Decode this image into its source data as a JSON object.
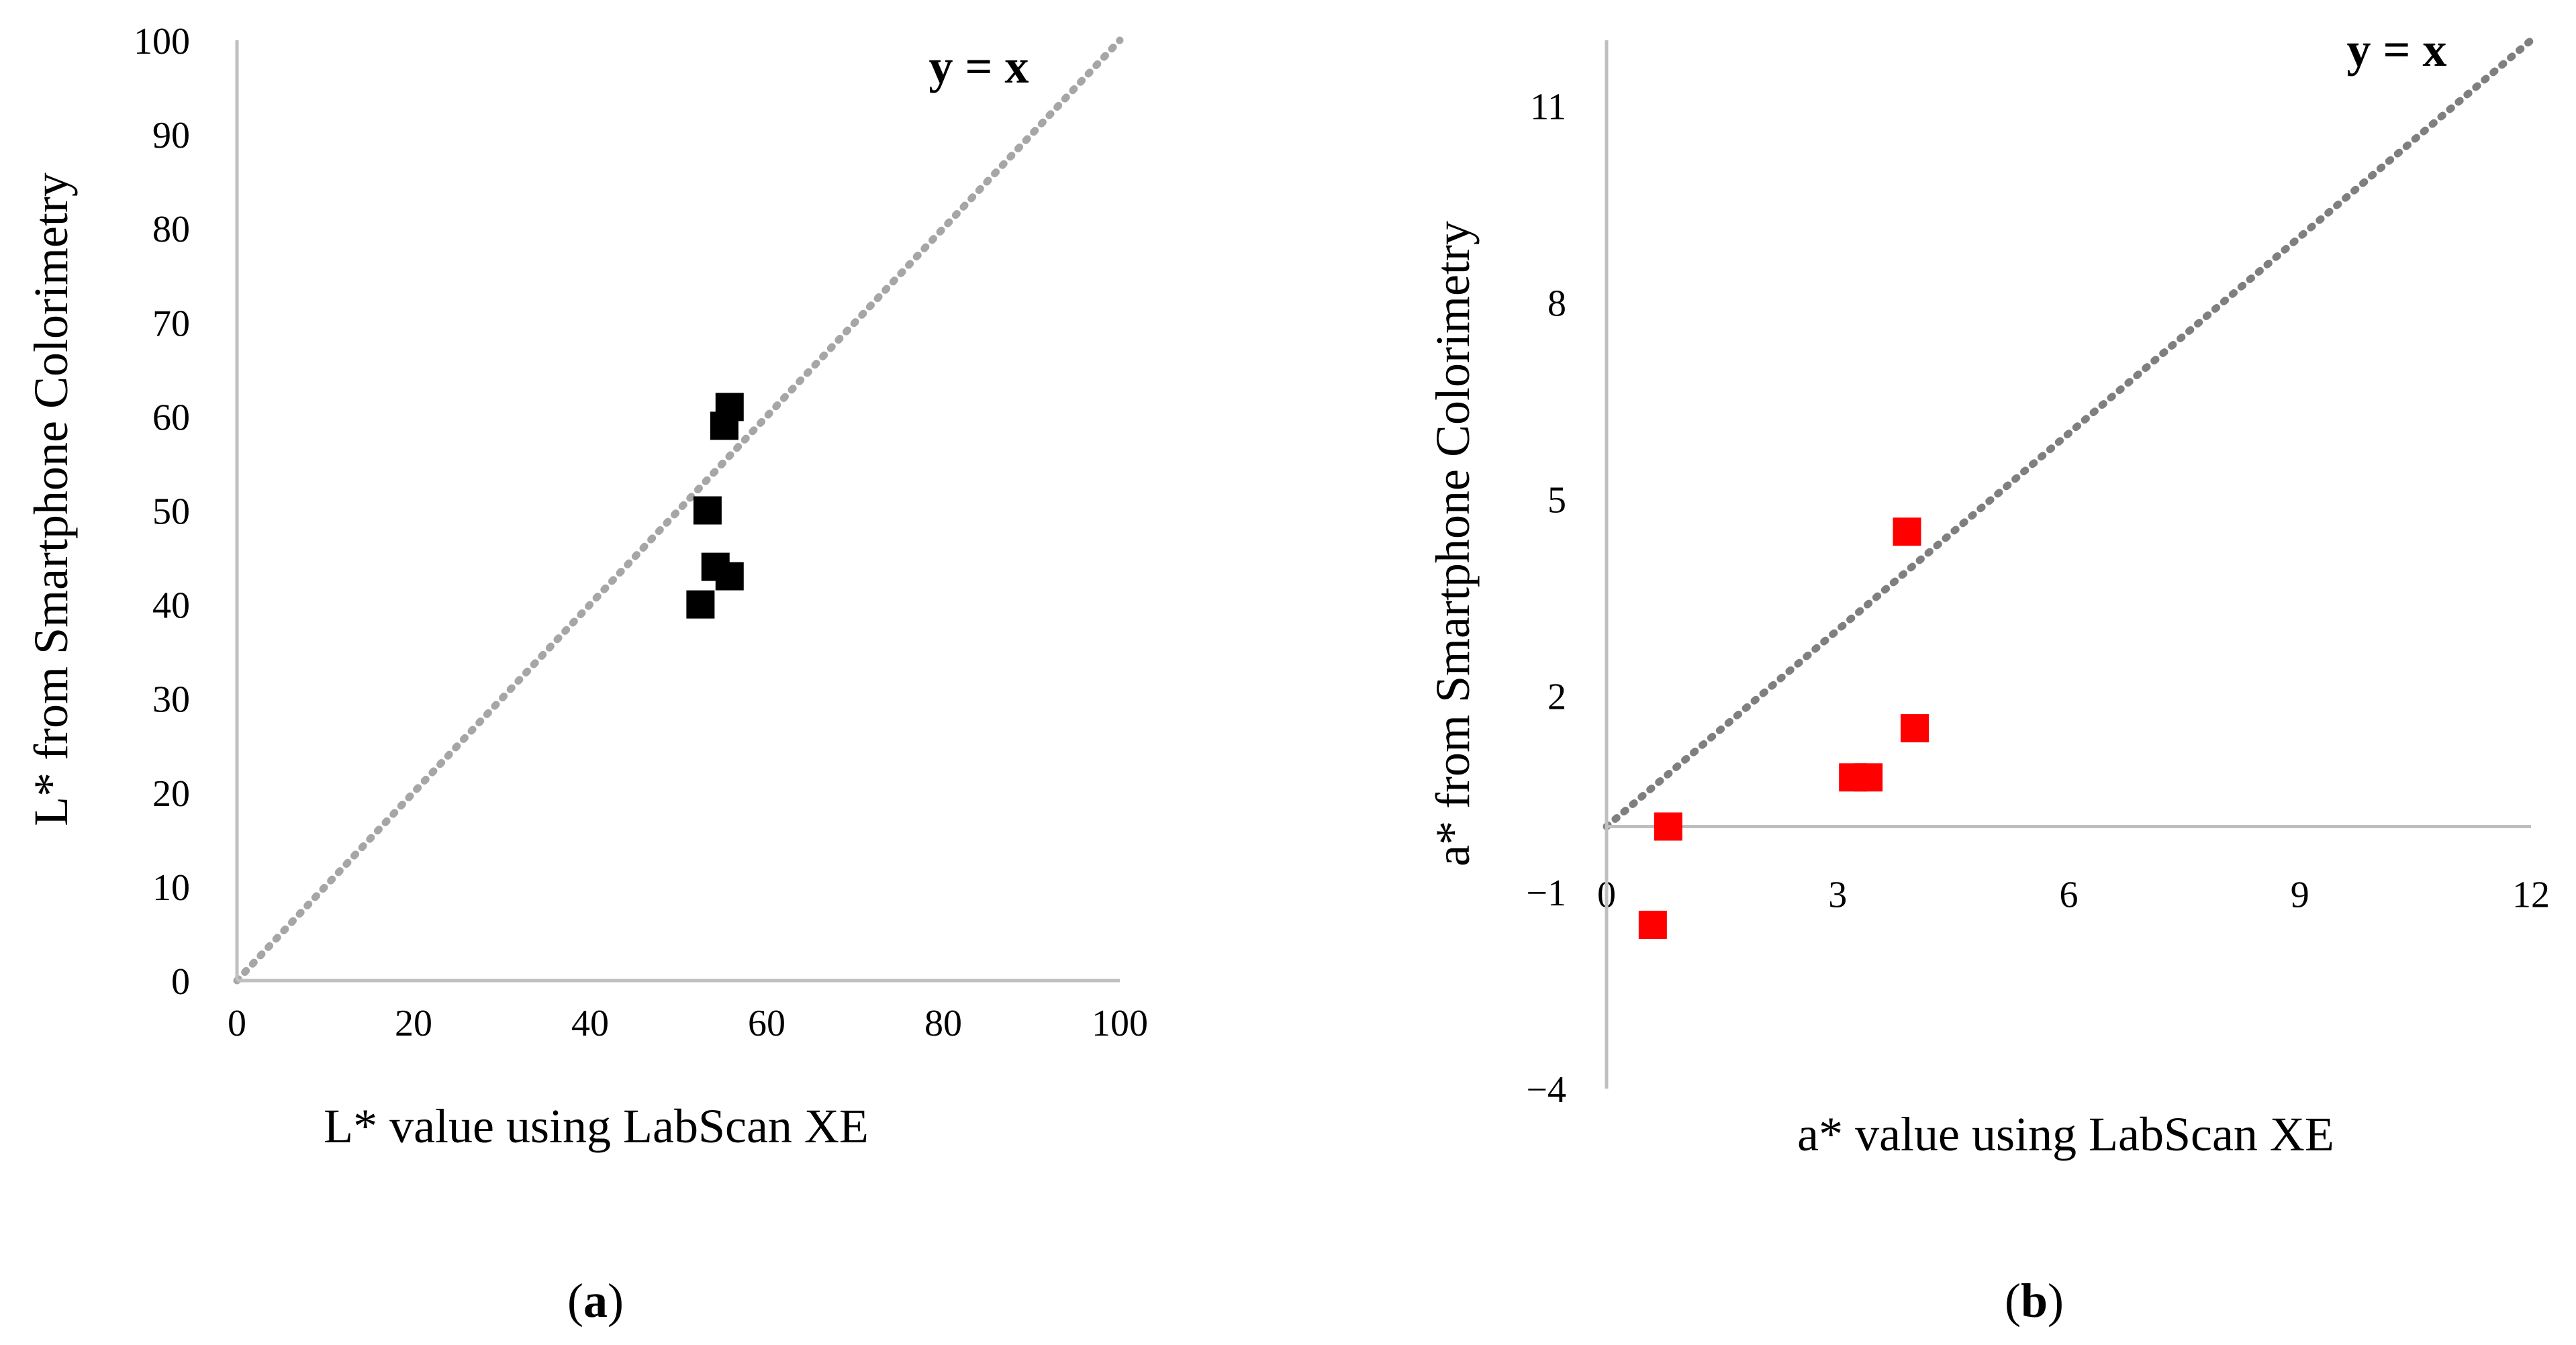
{
  "chart_data": [
    {
      "type": "scatter",
      "panel_label_open": "(",
      "panel_label_letter": "a",
      "panel_label_close": ")",
      "xlabel": "L* value using LabScan XE",
      "ylabel": "L* from Smartphone Colorimetry",
      "xlim": [
        0,
        100
      ],
      "ylim": [
        0,
        100
      ],
      "xticks": [
        0,
        20,
        40,
        60,
        80,
        100
      ],
      "yticks": [
        0,
        10,
        20,
        30,
        40,
        50,
        60,
        70,
        80,
        90,
        100
      ],
      "reference_line": {
        "label": "y = x",
        "color": "#a6a6a6"
      },
      "marker_color": "#000000",
      "grid": false,
      "points": [
        {
          "x": 52.5,
          "y": 40
        },
        {
          "x": 53.3,
          "y": 50
        },
        {
          "x": 54.2,
          "y": 44
        },
        {
          "x": 55.2,
          "y": 59
        },
        {
          "x": 55.8,
          "y": 43
        },
        {
          "x": 55.8,
          "y": 61
        }
      ]
    },
    {
      "type": "scatter",
      "panel_label_open": "(",
      "panel_label_letter": "b",
      "panel_label_close": ")",
      "xlabel": "a* value using LabScan XE",
      "ylabel": "a* from Smartphone Colorimetry",
      "xlim": [
        0,
        12
      ],
      "ylim": [
        -4,
        12
      ],
      "xticks": [
        0,
        3,
        6,
        9,
        12
      ],
      "yticks": [
        -4,
        -1,
        2,
        5,
        8,
        11
      ],
      "reference_line": {
        "label": "y = x",
        "color": "#7f7f7f"
      },
      "marker_color": "#ff0000",
      "grid": false,
      "points": [
        {
          "x": 0.6,
          "y": -1.5
        },
        {
          "x": 0.8,
          "y": 0.0
        },
        {
          "x": 3.2,
          "y": 0.75
        },
        {
          "x": 3.4,
          "y": 0.75
        },
        {
          "x": 3.9,
          "y": 4.5
        },
        {
          "x": 4.0,
          "y": 1.5
        }
      ]
    }
  ]
}
